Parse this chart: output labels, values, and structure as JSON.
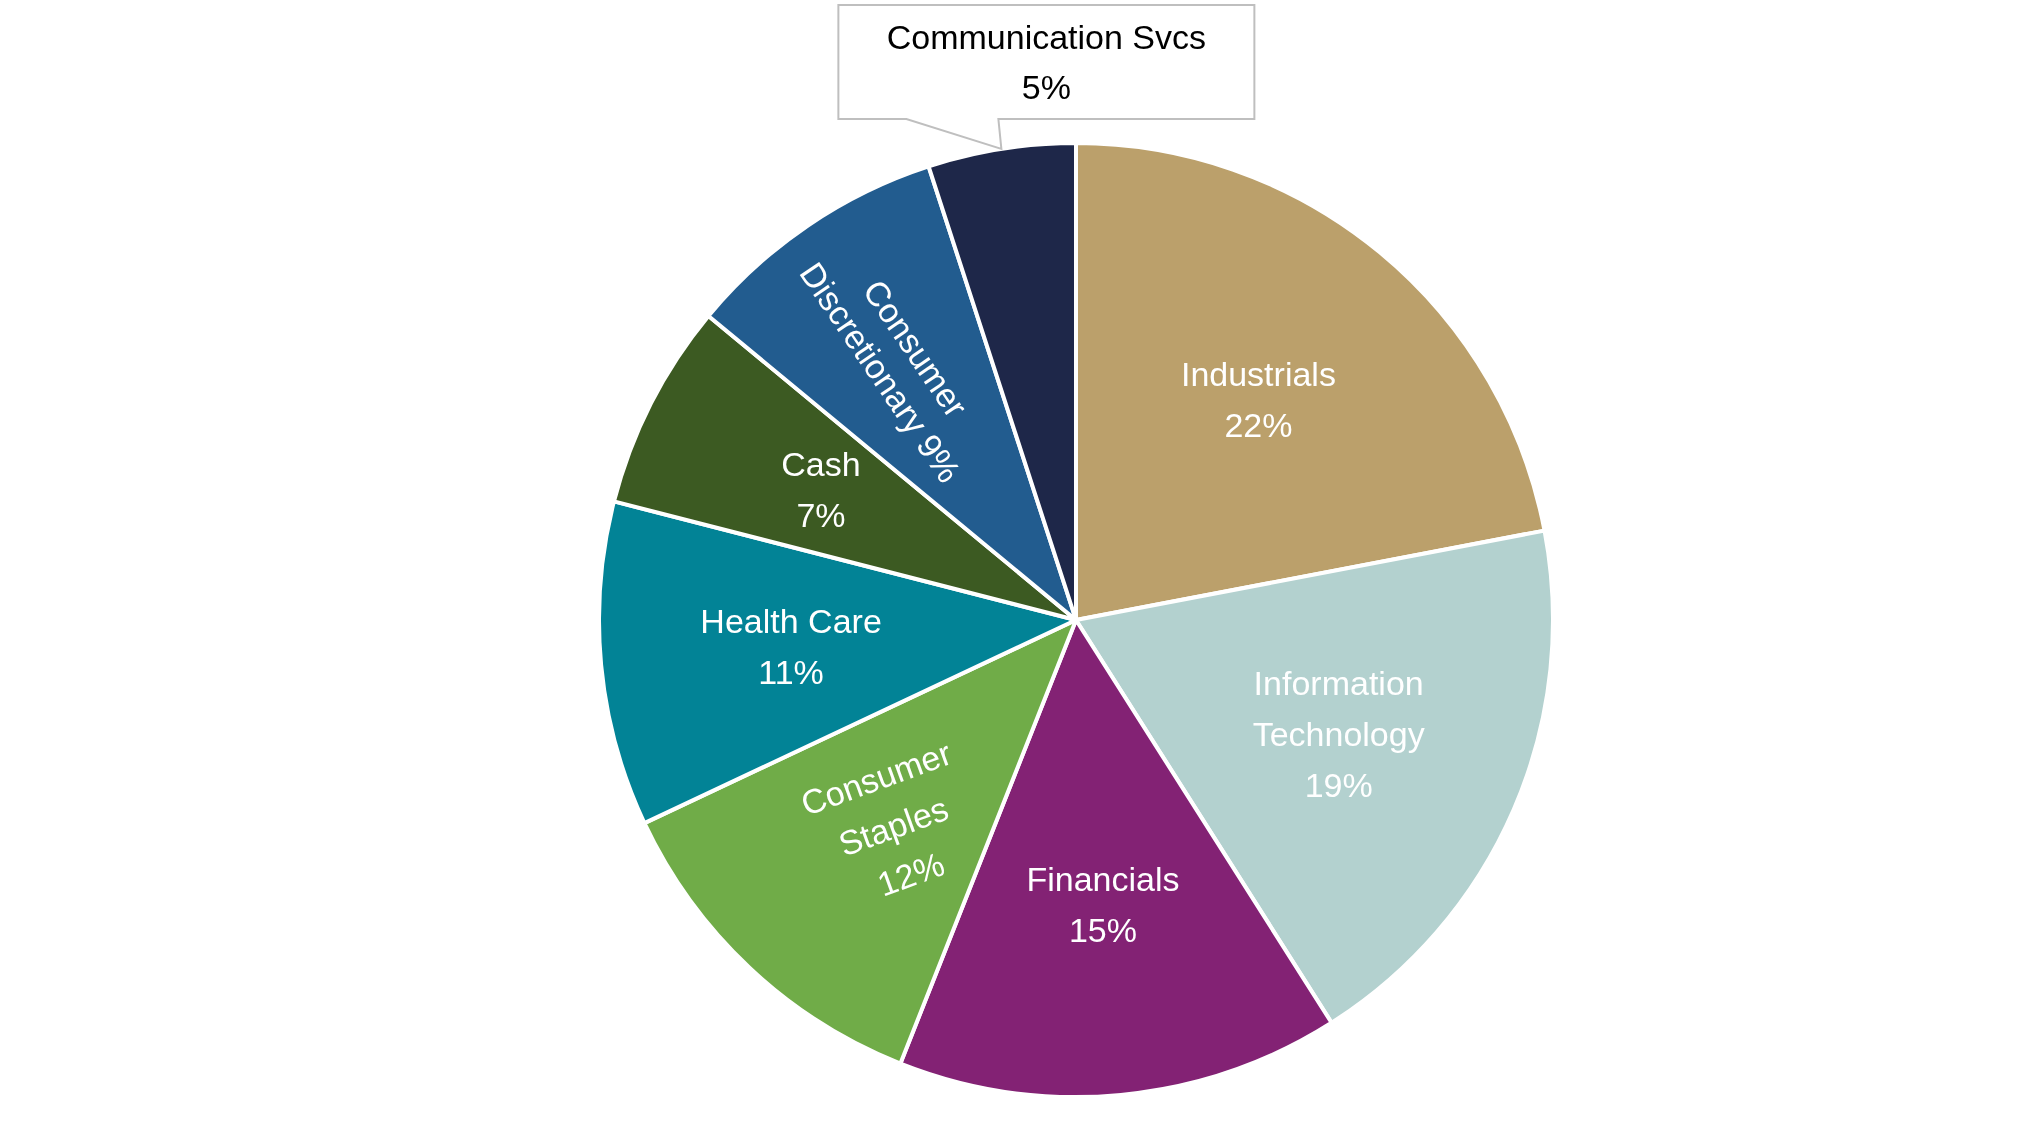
{
  "chart_data": {
    "type": "pie",
    "categories": [
      "Industrials",
      "Information Technology",
      "Financials",
      "Consumer Staples",
      "Health Care",
      "Cash",
      "Consumer Discretionary",
      "Communication Svcs"
    ],
    "values": [
      22,
      19,
      15,
      12,
      11,
      7,
      9,
      5
    ],
    "value_labels": [
      "22%",
      "19%",
      "15%",
      "12%",
      "11%",
      "7%",
      "9%",
      "5%"
    ],
    "colors": [
      "#bba06b",
      "#b3d1cf",
      "#832274",
      "#70ac48",
      "#028396",
      "#3c5a22",
      "#225c8f",
      "#1e2749"
    ]
  }
}
